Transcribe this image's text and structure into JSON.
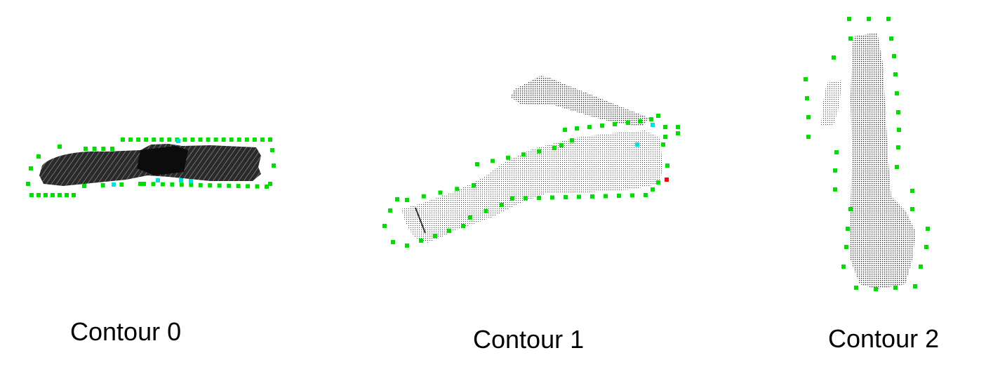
{
  "colors": {
    "background": "#ffffff",
    "contour_marker": "#00e000",
    "highlight_marker": "#00e0e0",
    "special_marker": "#ff0000",
    "caption_text": "#000000",
    "cloud_dense": "#111111",
    "cloud_light": "#555555"
  },
  "icons": [
    "contour-point-marker",
    "point-cloud-shape"
  ],
  "panels": [
    {
      "caption": "Contour 0"
    },
    {
      "caption": "Contour 1"
    },
    {
      "caption": "Contour 2"
    }
  ]
}
